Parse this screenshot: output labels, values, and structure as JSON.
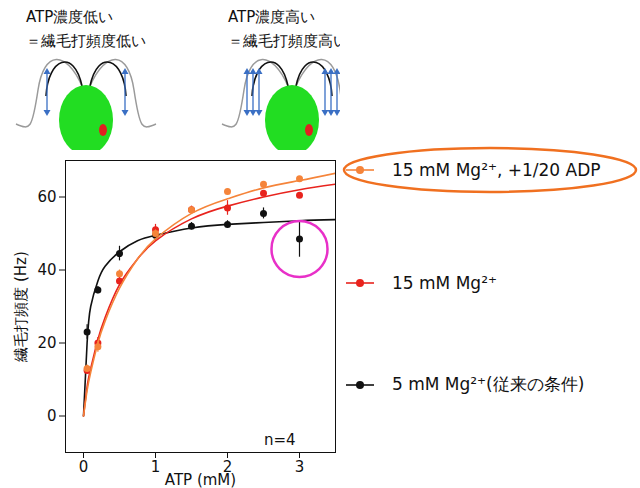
{
  "chart_data": {
    "type": "scatter",
    "x_label": "ATP (mM)",
    "y_label": "繊毛打頻度 (Hz)",
    "xlim": [
      -0.25,
      3.5
    ],
    "ylim": [
      -10,
      70
    ],
    "xticks": [
      0,
      1,
      2,
      3
    ],
    "yticks": [
      0,
      20,
      40,
      60
    ],
    "grid": false,
    "legend": "right",
    "marker": "circle",
    "annotations": [
      "n=4"
    ],
    "x": [
      0.05,
      0.2,
      0.5,
      1,
      1.5,
      2,
      2.5,
      3
    ],
    "fit_x": [
      0,
      0.05,
      0.1,
      0.2,
      0.3,
      0.5,
      0.75,
      1,
      1.5,
      2,
      2.5,
      3,
      3.5
    ],
    "series": [
      {
        "name": "15 mM Mg²⁺, +1/20 ADP",
        "color": "#f5843a",
        "values": [
          13,
          19,
          39,
          50,
          56.5,
          61.5,
          63.5,
          65
        ],
        "errors": [
          1,
          1.5,
          1,
          1,
          0.5,
          0.5,
          0.5,
          0.5
        ],
        "fit_values": [
          0,
          7,
          12,
          20,
          26,
          35,
          43,
          48.5,
          55.5,
          59.5,
          62.5,
          64.5,
          66.5
        ]
      },
      {
        "name": "15 mM Mg²⁺",
        "color": "#e8231d",
        "values": [
          12.5,
          20,
          37,
          51,
          56.5,
          57,
          61,
          60.5
        ],
        "errors": [
          1,
          1.5,
          1,
          1.5,
          1,
          2,
          0.5,
          0.5
        ],
        "fit_values": [
          0,
          8,
          13,
          21,
          27,
          36,
          43,
          48,
          54,
          57.5,
          60,
          62,
          63.5
        ]
      },
      {
        "name": "5 mM Mg²⁺(従来の条件)",
        "color": "#111111",
        "values": [
          23,
          34.5,
          44.5,
          49.5,
          52,
          52.5,
          55.5,
          48.5
        ],
        "errors": [
          2,
          1,
          2,
          1.5,
          1,
          1,
          1.5,
          5
        ],
        "fit_values": [
          0,
          20,
          30,
          37,
          41,
          45,
          48,
          49.5,
          51.5,
          52.5,
          53,
          53.5,
          53.8
        ]
      }
    ]
  },
  "illustration": {
    "left": [
      "ATP濃度低い",
      "＝繊毛打頻度低い"
    ],
    "right": [
      "ATP濃度高い",
      "＝繊毛打頻度高い"
    ]
  }
}
